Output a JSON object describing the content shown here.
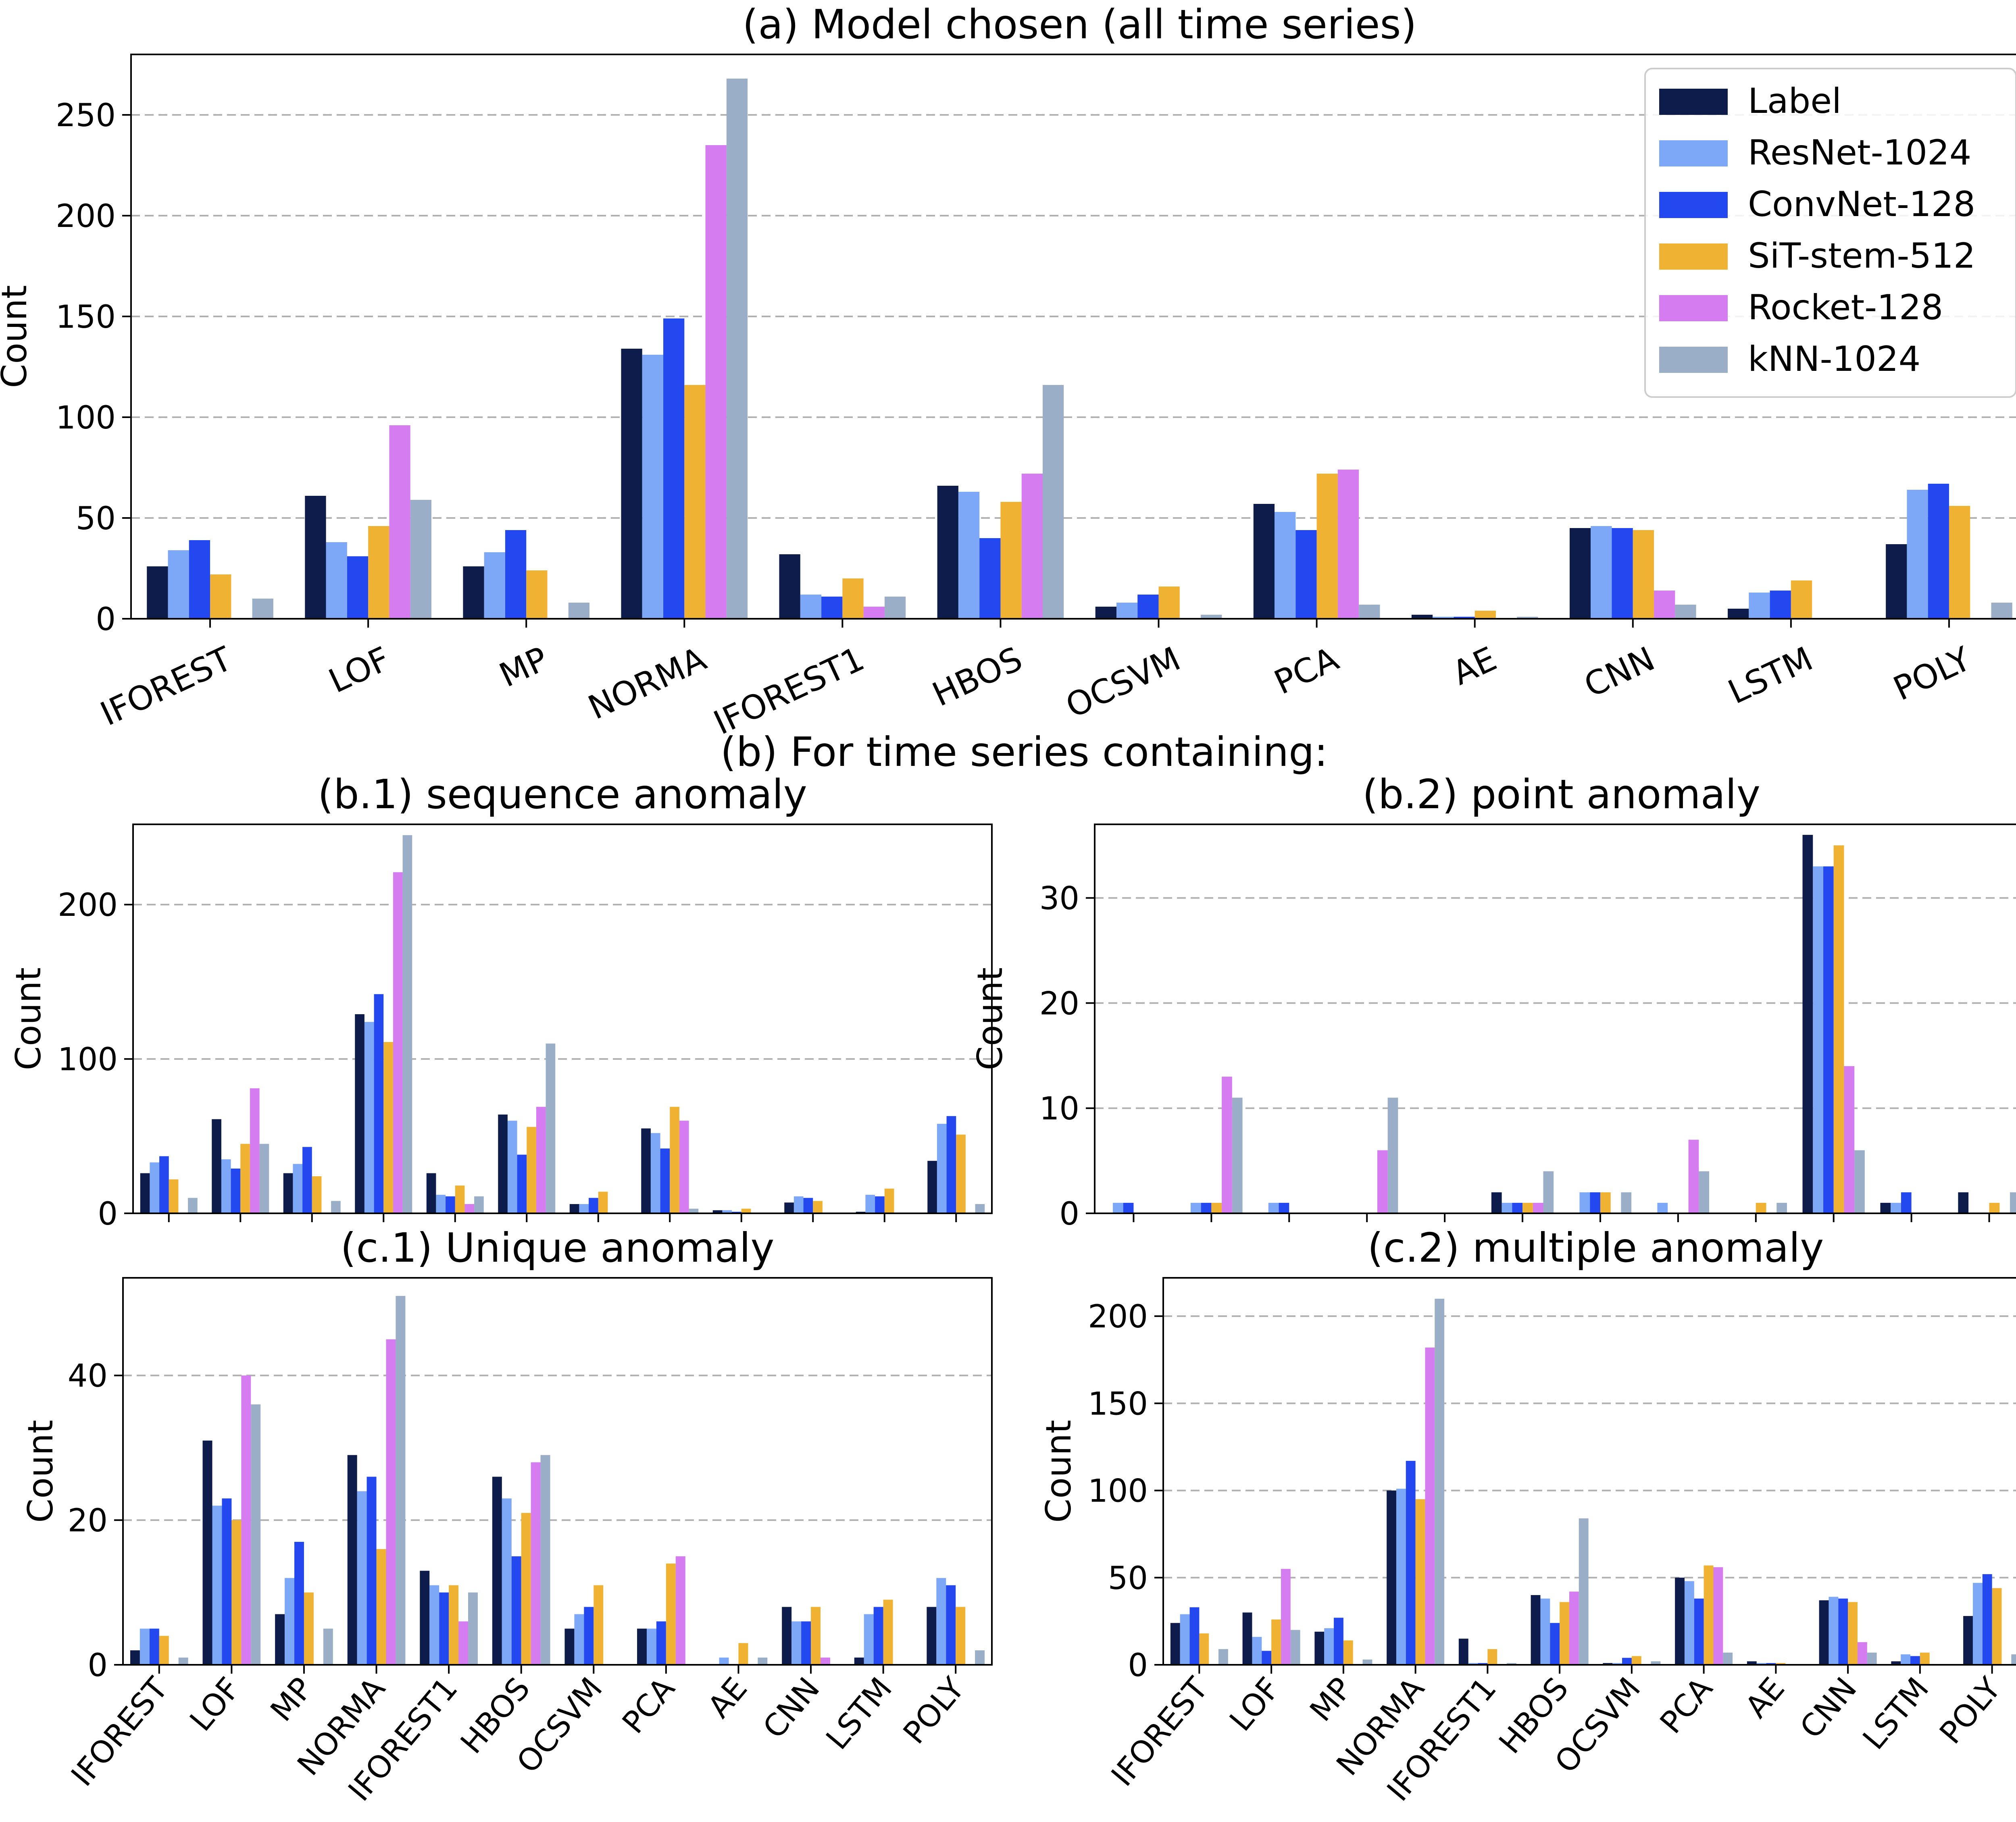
{
  "figure": {
    "section_b_heading": "(b) For time series containing:"
  },
  "legend": {
    "entries": [
      {
        "name": "Label",
        "color": "#0d1c4a"
      },
      {
        "name": "ResNet-1024",
        "color": "#7da7f7"
      },
      {
        "name": "ConvNet-128",
        "color": "#2348f0"
      },
      {
        "name": "SiT-stem-512",
        "color": "#f0b232"
      },
      {
        "name": "Rocket-128",
        "color": "#d47cf0"
      },
      {
        "name": "kNN-1024",
        "color": "#9aaec8"
      }
    ]
  },
  "chart_data": [
    {
      "id": "a",
      "type": "bar",
      "title": "(a) Model chosen (all time series)",
      "ylabel": "Count",
      "ylim": [
        0,
        280
      ],
      "yticks": [
        0,
        50,
        100,
        150,
        200,
        250
      ],
      "grid": "horizontal dashed",
      "legend": "top-right",
      "categories": [
        "IFOREST",
        "LOF",
        "MP",
        "NORMA",
        "IFOREST1",
        "HBOS",
        "OCSVM",
        "PCA",
        "AE",
        "CNN",
        "LSTM",
        "POLY"
      ],
      "series": [
        {
          "name": "Label",
          "values": [
            26,
            61,
            26,
            134,
            32,
            66,
            6,
            57,
            2,
            45,
            5,
            37
          ]
        },
        {
          "name": "ResNet-1024",
          "values": [
            34,
            38,
            33,
            131,
            12,
            63,
            8,
            53,
            1,
            46,
            13,
            64
          ]
        },
        {
          "name": "ConvNet-128",
          "values": [
            39,
            31,
            44,
            149,
            11,
            40,
            12,
            44,
            1,
            45,
            14,
            67
          ]
        },
        {
          "name": "SiT-stem-512",
          "values": [
            22,
            46,
            24,
            116,
            20,
            58,
            16,
            72,
            4,
            44,
            19,
            56
          ]
        },
        {
          "name": "Rocket-128",
          "values": [
            0,
            96,
            0,
            235,
            6,
            72,
            0,
            74,
            0,
            14,
            0,
            0
          ]
        },
        {
          "name": "kNN-1024",
          "values": [
            10,
            59,
            8,
            268,
            11,
            116,
            2,
            7,
            1,
            7,
            0,
            8
          ]
        }
      ]
    },
    {
      "id": "b1",
      "type": "bar",
      "title": "(b.1) sequence anomaly",
      "ylabel": "Count",
      "ylim": [
        0,
        252
      ],
      "yticks": [
        0,
        100,
        200
      ],
      "categories": [
        "IFOREST",
        "LOF",
        "MP",
        "NORMA",
        "IFOREST1",
        "HBOS",
        "OCSVM",
        "PCA",
        "AE",
        "CNN",
        "LSTM",
        "POLY"
      ],
      "series": [
        {
          "name": "Label",
          "values": [
            26,
            61,
            26,
            129,
            26,
            64,
            6,
            55,
            2,
            7,
            1,
            34
          ]
        },
        {
          "name": "ResNet-1024",
          "values": [
            33,
            35,
            32,
            124,
            12,
            60,
            6,
            52,
            2,
            11,
            12,
            58
          ]
        },
        {
          "name": "ConvNet-128",
          "values": [
            37,
            29,
            43,
            142,
            11,
            38,
            10,
            42,
            1,
            10,
            11,
            63
          ]
        },
        {
          "name": "SiT-stem-512",
          "values": [
            22,
            45,
            24,
            111,
            18,
            56,
            14,
            69,
            3,
            8,
            16,
            51
          ]
        },
        {
          "name": "Rocket-128",
          "values": [
            0,
            81,
            0,
            221,
            6,
            69,
            0,
            60,
            0,
            0,
            0,
            0
          ]
        },
        {
          "name": "kNN-1024",
          "values": [
            10,
            45,
            8,
            245,
            11,
            110,
            0,
            3,
            0,
            0,
            0,
            6
          ]
        }
      ]
    },
    {
      "id": "b2",
      "type": "bar",
      "title": "(b.2) point anomaly",
      "ylabel": "Count",
      "ylim": [
        0,
        37
      ],
      "yticks": [
        0,
        10,
        20,
        30
      ],
      "categories": [
        "IFOREST",
        "LOF",
        "MP",
        "NORMA",
        "IFOREST1",
        "HBOS",
        "OCSVM",
        "PCA",
        "AE",
        "CNN",
        "LSTM",
        "POLY"
      ],
      "series": [
        {
          "name": "Label",
          "values": [
            0,
            0,
            0,
            0,
            0,
            2,
            0,
            0,
            0,
            36,
            1,
            2
          ]
        },
        {
          "name": "ResNet-1024",
          "values": [
            1,
            1,
            1,
            0,
            0,
            1,
            2,
            1,
            0,
            33,
            1,
            0
          ]
        },
        {
          "name": "ConvNet-128",
          "values": [
            1,
            1,
            1,
            0,
            0,
            1,
            2,
            0,
            0,
            33,
            2,
            0
          ]
        },
        {
          "name": "SiT-stem-512",
          "values": [
            0,
            1,
            0,
            0,
            0,
            1,
            2,
            0,
            1,
            35,
            0,
            1
          ]
        },
        {
          "name": "Rocket-128",
          "values": [
            0,
            13,
            0,
            6,
            0,
            1,
            0,
            7,
            0,
            14,
            0,
            0
          ]
        },
        {
          "name": "kNN-1024",
          "values": [
            0,
            11,
            0,
            11,
            0,
            4,
            2,
            4,
            1,
            6,
            0,
            2
          ]
        }
      ]
    },
    {
      "id": "c1",
      "type": "bar",
      "title": "(c.1) Unique anomaly",
      "ylabel": "Count",
      "ylim": [
        0,
        53.5
      ],
      "yticks": [
        0,
        20,
        40
      ],
      "categories": [
        "IFOREST",
        "LOF",
        "MP",
        "NORMA",
        "IFOREST1",
        "HBOS",
        "OCSVM",
        "PCA",
        "AE",
        "CNN",
        "LSTM",
        "POLY"
      ],
      "series": [
        {
          "name": "Label",
          "values": [
            2,
            31,
            7,
            29,
            13,
            26,
            5,
            5,
            0,
            8,
            1,
            8
          ]
        },
        {
          "name": "ResNet-1024",
          "values": [
            5,
            22,
            12,
            24,
            11,
            23,
            7,
            5,
            1,
            6,
            7,
            12
          ]
        },
        {
          "name": "ConvNet-128",
          "values": [
            5,
            23,
            17,
            26,
            10,
            15,
            8,
            6,
            0,
            6,
            8,
            11
          ]
        },
        {
          "name": "SiT-stem-512",
          "values": [
            4,
            20,
            10,
            16,
            11,
            21,
            11,
            14,
            3,
            8,
            9,
            8
          ]
        },
        {
          "name": "Rocket-128",
          "values": [
            0,
            40,
            0,
            45,
            6,
            28,
            0,
            15,
            0,
            1,
            0,
            0
          ]
        },
        {
          "name": "kNN-1024",
          "values": [
            1,
            36,
            5,
            51,
            10,
            29,
            0,
            0,
            1,
            0,
            0,
            2
          ]
        }
      ]
    },
    {
      "id": "c2",
      "type": "bar",
      "title": "(c.2) multiple anomaly",
      "ylabel": "Count",
      "ylim": [
        0,
        222
      ],
      "yticks": [
        0,
        50,
        100,
        150,
        200
      ],
      "categories": [
        "IFOREST",
        "LOF",
        "MP",
        "NORMA",
        "IFOREST1",
        "HBOS",
        "OCSVM",
        "PCA",
        "AE",
        "CNN",
        "LSTM",
        "POLY"
      ],
      "series": [
        {
          "name": "Label",
          "values": [
            24,
            30,
            19,
            100,
            15,
            40,
            1,
            50,
            2,
            37,
            2,
            28
          ]
        },
        {
          "name": "ResNet-1024",
          "values": [
            29,
            16,
            21,
            101,
            1,
            38,
            1,
            48,
            1,
            39,
            6,
            47
          ]
        },
        {
          "name": "ConvNet-128",
          "values": [
            33,
            8,
            27,
            117,
            1,
            24,
            4,
            38,
            1,
            38,
            5,
            52
          ]
        },
        {
          "name": "SiT-stem-512",
          "values": [
            18,
            26,
            14,
            95,
            9,
            36,
            5,
            57,
            1,
            36,
            7,
            44
          ]
        },
        {
          "name": "Rocket-128",
          "values": [
            0,
            55,
            0,
            182,
            0,
            42,
            0,
            56,
            0,
            13,
            0,
            0
          ]
        },
        {
          "name": "kNN-1024",
          "values": [
            9,
            20,
            3,
            210,
            1,
            84,
            2,
            7,
            0,
            7,
            0,
            6
          ]
        }
      ]
    }
  ]
}
